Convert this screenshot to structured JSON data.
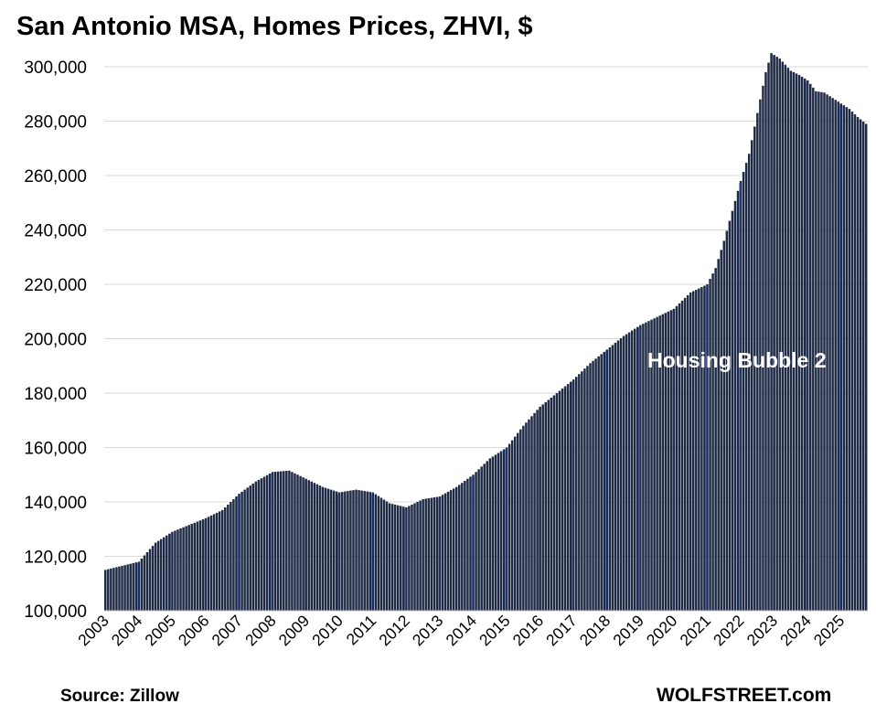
{
  "chart_data": {
    "type": "bar",
    "title": "San Antonio MSA, Homes Prices, ZHVI, $",
    "xlabel": "",
    "ylabel": "",
    "ylim": [
      100000,
      300000
    ],
    "y_ticks": [
      "100,000",
      "120,000",
      "140,000",
      "160,000",
      "180,000",
      "200,000",
      "220,000",
      "240,000",
      "260,000",
      "280,000",
      "300,000"
    ],
    "y_tick_values": [
      100000,
      120000,
      140000,
      160000,
      180000,
      200000,
      220000,
      240000,
      260000,
      280000,
      300000
    ],
    "x_ticks": [
      "2003",
      "2004",
      "2005",
      "2006",
      "2007",
      "2008",
      "2009",
      "2010",
      "2011",
      "2012",
      "2013",
      "2014",
      "2015",
      "2016",
      "2017",
      "2018",
      "2019",
      "2020",
      "2021",
      "2022",
      "2023",
      "2024",
      "2025"
    ],
    "first_year": 2003,
    "grid": true,
    "annotation": "Housing Bubble 2",
    "source": "Source: Zillow",
    "credit": "WOLFSTREET.com",
    "bar_color": "#1f2a44",
    "year_line_color": "#4a68b0",
    "monthly_anchors": [
      [
        0,
        115000
      ],
      [
        6,
        116500
      ],
      [
        12,
        118000
      ],
      [
        18,
        125000
      ],
      [
        24,
        129000
      ],
      [
        30,
        131500
      ],
      [
        36,
        134000
      ],
      [
        42,
        137000
      ],
      [
        48,
        143000
      ],
      [
        54,
        147500
      ],
      [
        60,
        151000
      ],
      [
        66,
        151500
      ],
      [
        72,
        148500
      ],
      [
        78,
        145500
      ],
      [
        84,
        143500
      ],
      [
        90,
        144500
      ],
      [
        96,
        143500
      ],
      [
        102,
        139500
      ],
      [
        108,
        138000
      ],
      [
        114,
        141000
      ],
      [
        120,
        142000
      ],
      [
        126,
        145500
      ],
      [
        132,
        150000
      ],
      [
        138,
        156000
      ],
      [
        144,
        160000
      ],
      [
        150,
        168000
      ],
      [
        156,
        175000
      ],
      [
        162,
        180000
      ],
      [
        168,
        185000
      ],
      [
        174,
        191000
      ],
      [
        180,
        196000
      ],
      [
        186,
        201000
      ],
      [
        192,
        205000
      ],
      [
        198,
        208000
      ],
      [
        204,
        211000
      ],
      [
        210,
        217000
      ],
      [
        216,
        220000
      ],
      [
        219,
        226000
      ],
      [
        222,
        236000
      ],
      [
        225,
        247000
      ],
      [
        228,
        258000
      ],
      [
        231,
        268000
      ],
      [
        234,
        283000
      ],
      [
        237,
        298000
      ],
      [
        239,
        305000
      ],
      [
        242,
        303000
      ],
      [
        246,
        298500
      ],
      [
        249,
        297000
      ],
      [
        252,
        295000
      ],
      [
        255,
        291000
      ],
      [
        258,
        290500
      ],
      [
        261,
        288500
      ],
      [
        264,
        286500
      ],
      [
        267,
        284500
      ],
      [
        270,
        281500
      ],
      [
        273,
        279000
      ]
    ]
  }
}
